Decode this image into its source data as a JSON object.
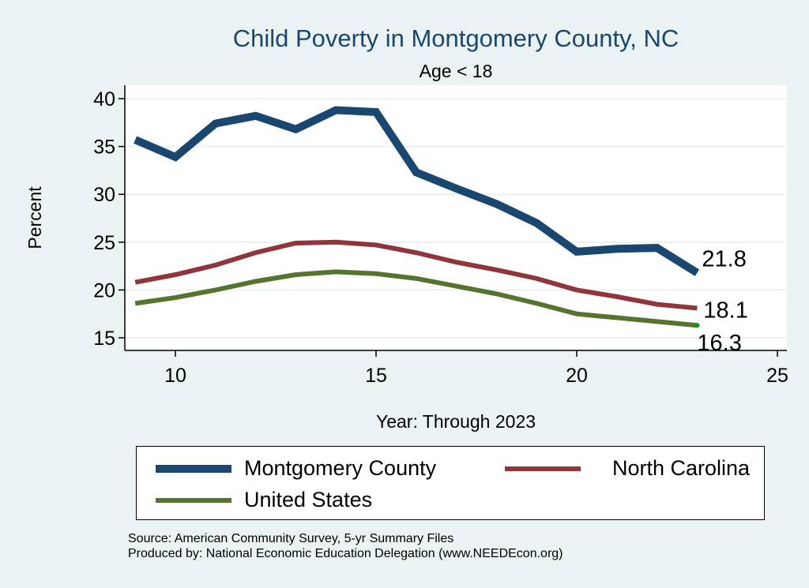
{
  "chart_data": {
    "type": "line",
    "title": "Child Poverty in Montgomery County, NC",
    "subtitle": "Age < 18",
    "xlabel": "Year: Through 2023",
    "ylabel": "Percent",
    "xlim": [
      8.8,
      25.2
    ],
    "ylim": [
      13.6,
      41.0
    ],
    "xticks": [
      10,
      15,
      20,
      25
    ],
    "yticks": [
      15,
      20,
      25,
      30,
      35,
      40
    ],
    "grid": true,
    "legend_position": "bottom",
    "x": [
      9,
      10,
      11,
      12,
      13,
      14,
      15,
      16,
      17,
      18,
      19,
      20,
      21,
      22,
      23
    ],
    "series": [
      {
        "name": "Montgomery County",
        "color": "#1a476f",
        "values": [
          35.7,
          33.9,
          37.4,
          38.2,
          36.8,
          38.8,
          38.6,
          32.3,
          30.6,
          29.0,
          27.0,
          24.0,
          24.3,
          24.4,
          21.8
        ],
        "end_label": "21.8"
      },
      {
        "name": "North Carolina",
        "color": "#90353b",
        "values": [
          20.8,
          21.6,
          22.6,
          23.9,
          24.9,
          25.0,
          24.7,
          23.9,
          22.9,
          22.1,
          21.2,
          20.0,
          19.3,
          18.5,
          18.1
        ],
        "end_label": "18.1"
      },
      {
        "name": "United States",
        "color": "#55752f",
        "values": [
          18.6,
          19.2,
          20.0,
          20.9,
          21.6,
          21.9,
          21.7,
          21.2,
          20.4,
          19.6,
          18.6,
          17.5,
          17.1,
          16.7,
          16.3
        ],
        "end_label": "16.3"
      }
    ]
  },
  "legend": {
    "items": [
      {
        "label": "Montgomery County",
        "color": "#1a476f"
      },
      {
        "label": "North Carolina",
        "color": "#90353b"
      },
      {
        "label": "United States",
        "color": "#55752f"
      }
    ]
  },
  "notes": {
    "source": "Source: American Community Survey, 5-yr Summary Files",
    "produced": "Produced by: National Economic Education Delegation (www.NEEDEcon.org)"
  }
}
